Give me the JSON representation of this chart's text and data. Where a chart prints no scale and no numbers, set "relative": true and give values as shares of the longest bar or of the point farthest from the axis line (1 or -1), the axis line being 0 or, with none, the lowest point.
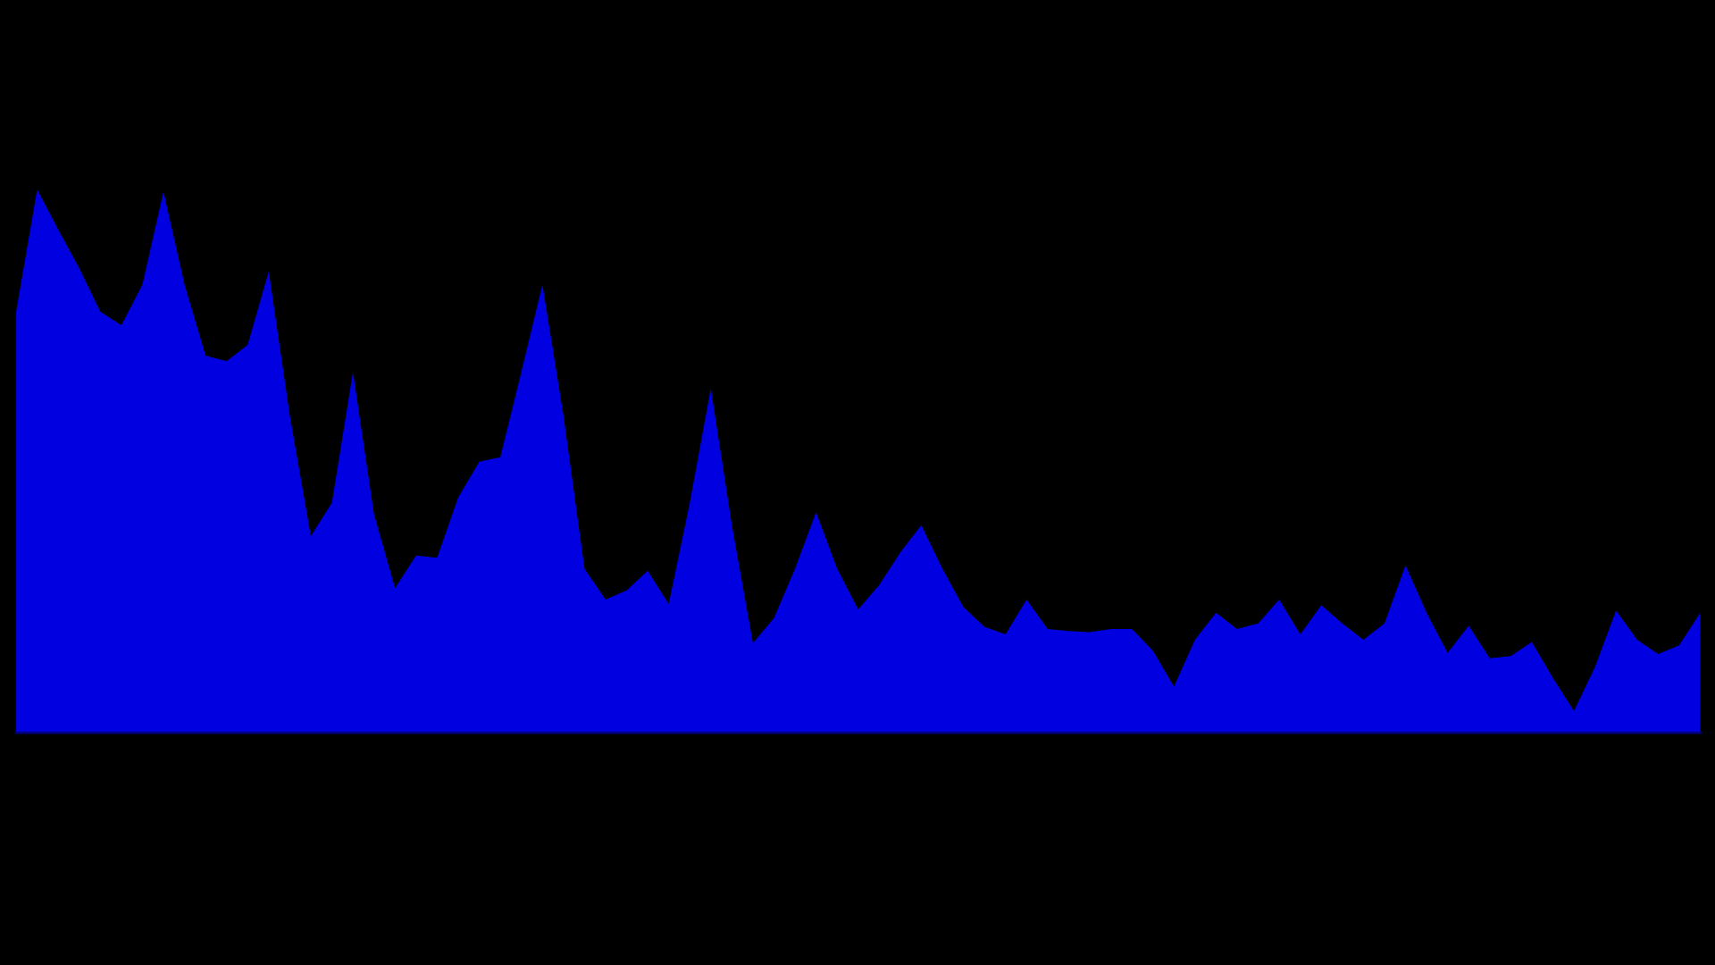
{
  "chart_data": {
    "type": "area",
    "relative": true,
    "categories": [
      null,
      null,
      null,
      null,
      null,
      null,
      null,
      null,
      null,
      null,
      null,
      null,
      null,
      null,
      null,
      null,
      null,
      null,
      null,
      null,
      null,
      null,
      null,
      null,
      null,
      null,
      null,
      null,
      null,
      null,
      null,
      null,
      null,
      null,
      null,
      null,
      null,
      null,
      null,
      null,
      null,
      null,
      null,
      null,
      null,
      null,
      null,
      null,
      null,
      null,
      null,
      null,
      null,
      null,
      null,
      null,
      null,
      null,
      null,
      null,
      null,
      null,
      null,
      null,
      null,
      null,
      null,
      null,
      null,
      null,
      null,
      null,
      null,
      null,
      null,
      null,
      null,
      null,
      null,
      null,
      null
    ],
    "series": [
      {
        "color": "#0000e0",
        "values": [
          0.775,
          1.0,
          0.926,
          0.855,
          0.775,
          0.75,
          0.825,
          0.996,
          0.825,
          0.694,
          0.684,
          0.714,
          0.849,
          0.584,
          0.362,
          0.423,
          0.664,
          0.402,
          0.266,
          0.326,
          0.322,
          0.433,
          0.499,
          0.507,
          0.664,
          0.825,
          0.584,
          0.302,
          0.245,
          0.262,
          0.298,
          0.237,
          0.423,
          0.634,
          0.382,
          0.165,
          0.211,
          0.302,
          0.406,
          0.302,
          0.227,
          0.272,
          0.332,
          0.382,
          0.302,
          0.231,
          0.195,
          0.181,
          0.245,
          0.191,
          0.187,
          0.185,
          0.191,
          0.191,
          0.151,
          0.085,
          0.171,
          0.221,
          0.191,
          0.201,
          0.245,
          0.181,
          0.235,
          0.201,
          0.171,
          0.201,
          0.308,
          0.221,
          0.147,
          0.197,
          0.137,
          0.141,
          0.167,
          0.101,
          0.04,
          0.121,
          0.225,
          0.171,
          0.145,
          0.161,
          0.221
        ]
      }
    ],
    "legend": false
  }
}
